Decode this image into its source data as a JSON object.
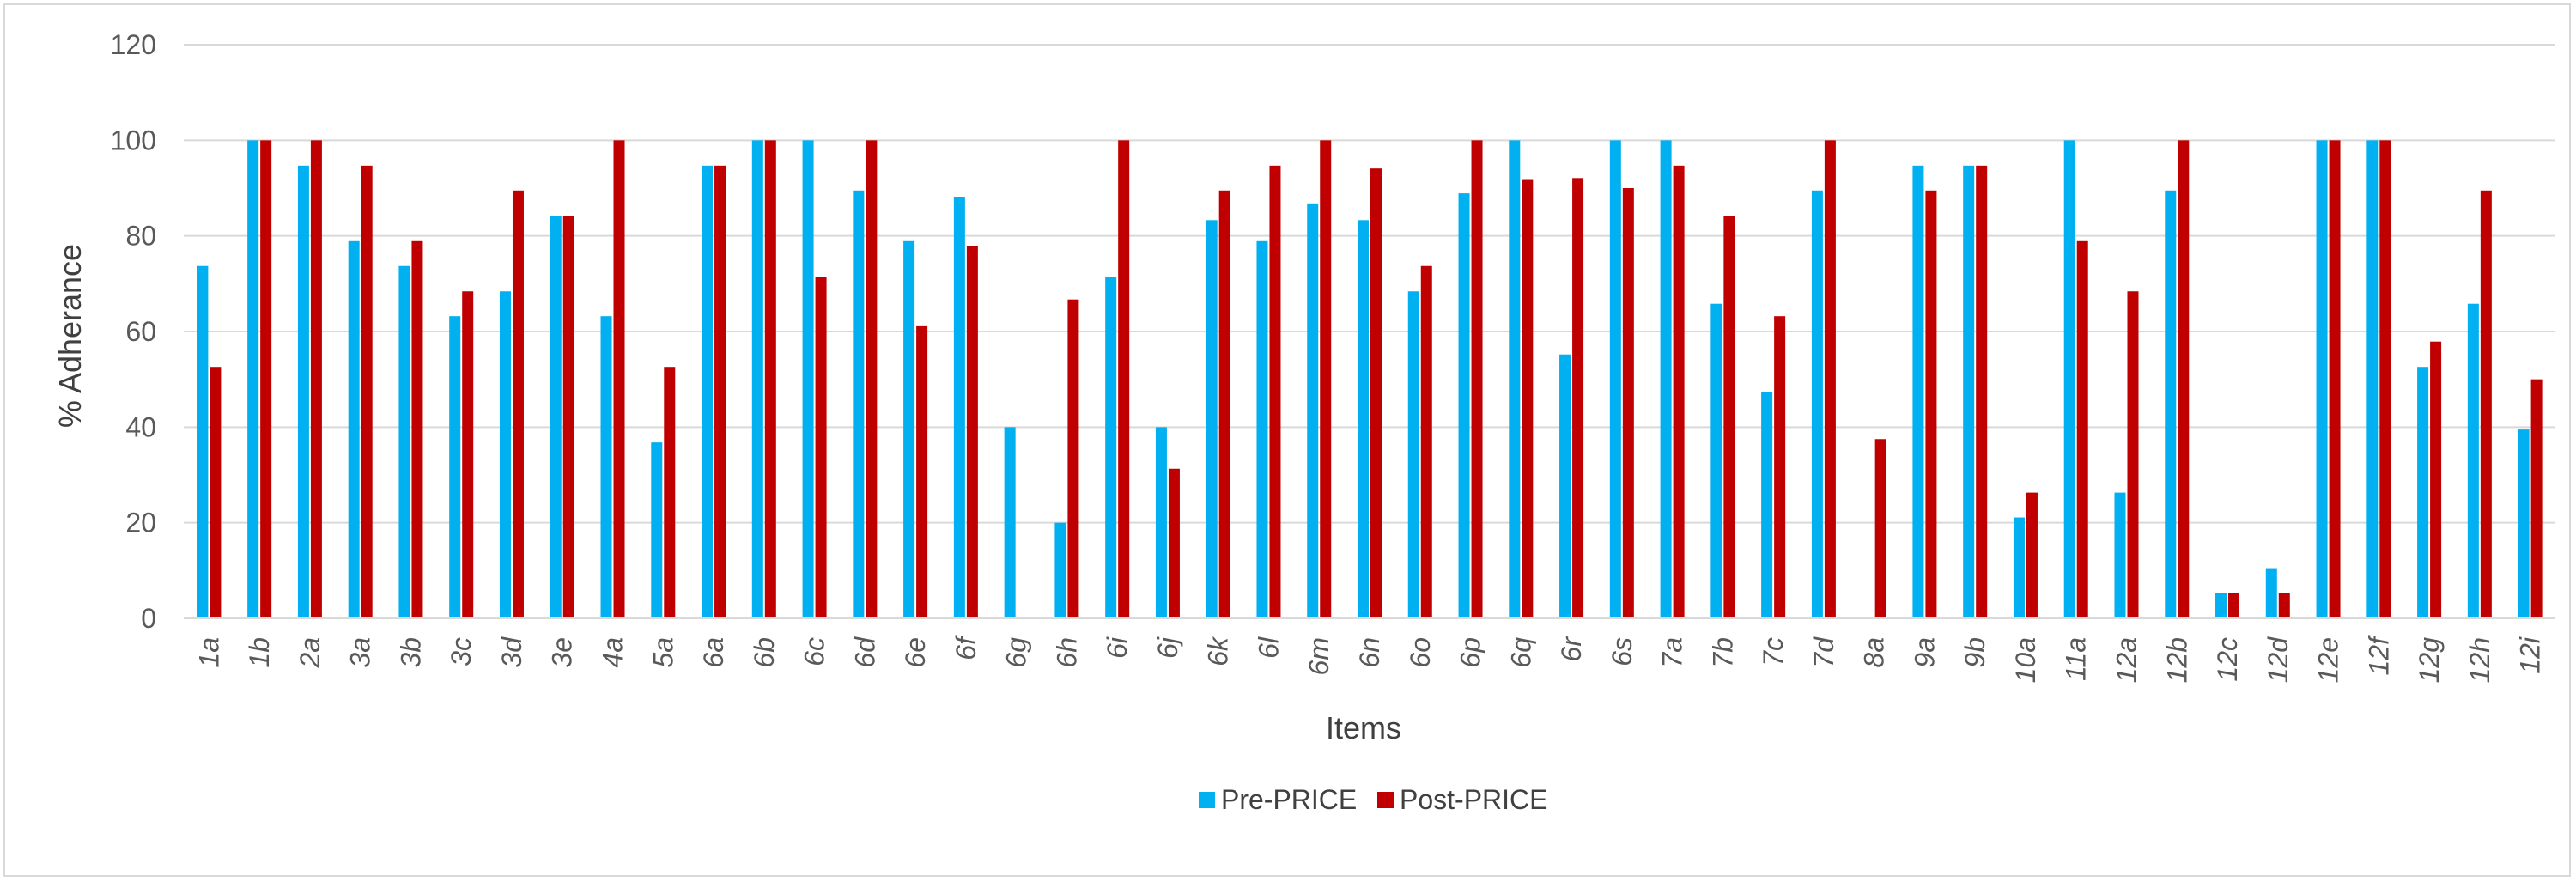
{
  "chart_data": {
    "type": "bar",
    "title": "",
    "xlabel": "Items",
    "ylabel": "% Adherance",
    "ylim": [
      0,
      120
    ],
    "yticks": [
      0,
      20,
      40,
      60,
      80,
      100,
      120
    ],
    "grid": true,
    "legend_position": "bottom",
    "categories": [
      "1a",
      "1b",
      "2a",
      "3a",
      "3b",
      "3c",
      "3d",
      "3e",
      "4a",
      "5a",
      "6a",
      "6b",
      "6c",
      "6d",
      "6e",
      "6f",
      "6g",
      "6h",
      "6i",
      "6j",
      "6k",
      "6l",
      "6m",
      "6n",
      "6o",
      "6p",
      "6q",
      "6r",
      "6s",
      "7a",
      "7b",
      "7c",
      "7d",
      "8a",
      "9a",
      "9b",
      "10a",
      "11a",
      "12a",
      "12b",
      "12c",
      "12d",
      "12e",
      "12f",
      "12g",
      "12h",
      "12i"
    ],
    "series": [
      {
        "name": "Pre-PRICE",
        "color": "#00b0f0",
        "values": [
          73.7,
          100,
          94.7,
          78.9,
          73.7,
          63.2,
          68.4,
          84.2,
          63.2,
          36.8,
          94.7,
          100,
          100,
          89.5,
          78.9,
          88.2,
          40,
          20,
          71.4,
          40,
          83.3,
          78.9,
          86.8,
          83.3,
          68.4,
          88.9,
          100,
          55.2,
          100,
          100,
          65.8,
          47.4,
          89.5,
          0,
          94.7,
          94.7,
          21.1,
          100,
          26.3,
          89.5,
          5.3,
          10.5,
          100,
          100,
          52.6,
          65.8,
          39.5
        ]
      },
      {
        "name": "Post-PRICE",
        "color": "#c00000",
        "values": [
          52.6,
          100,
          100,
          94.7,
          78.9,
          68.4,
          89.5,
          84.2,
          100,
          52.6,
          94.7,
          100,
          71.4,
          100,
          61.1,
          77.8,
          0,
          66.7,
          100,
          31.3,
          89.5,
          94.7,
          100,
          94.1,
          73.7,
          100,
          91.7,
          92.1,
          90,
          94.7,
          84.2,
          63.2,
          100,
          37.5,
          89.5,
          94.7,
          26.3,
          78.9,
          68.4,
          100,
          5.3,
          5.3,
          100,
          100,
          57.9,
          89.5,
          50
        ]
      }
    ]
  }
}
